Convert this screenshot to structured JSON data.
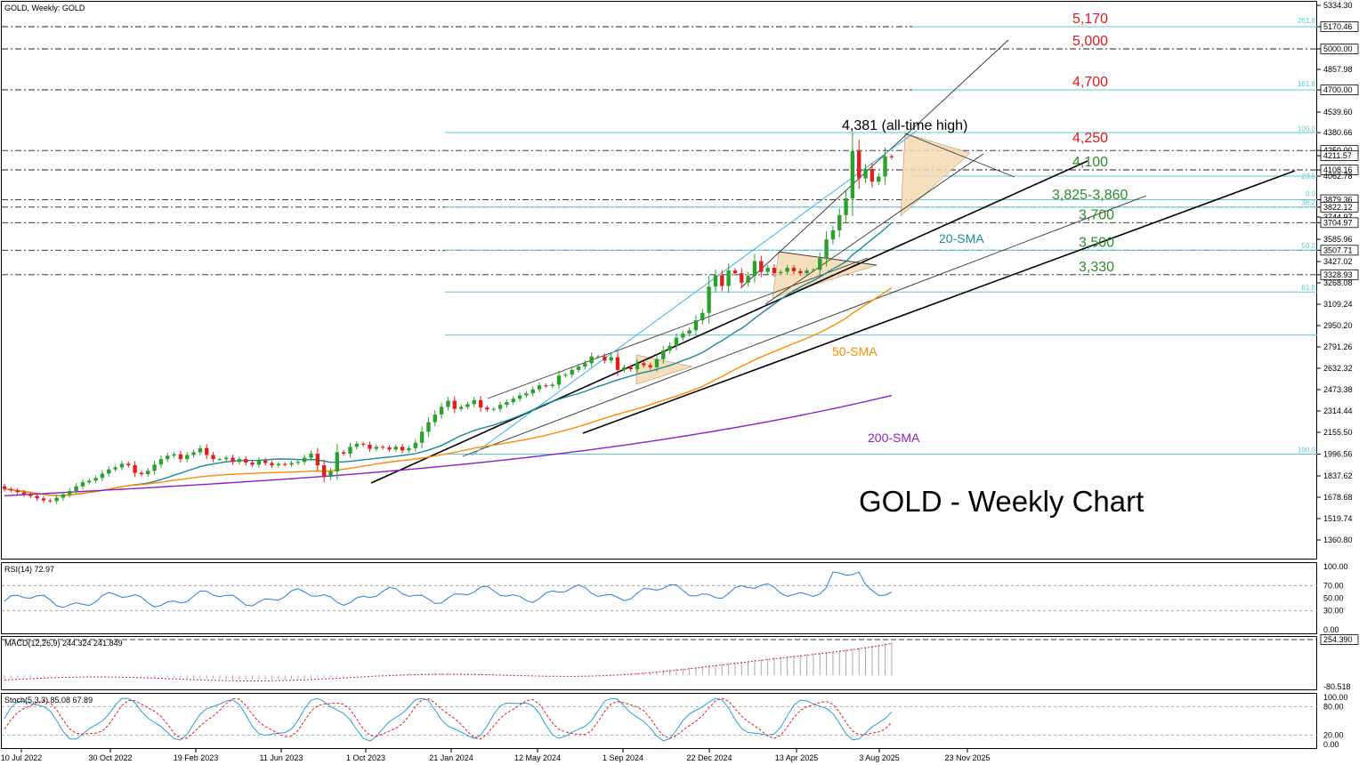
{
  "chart_data": {
    "type": "candlestick",
    "header": "GOLD, Weekly:  GOLD",
    "title": "GOLD - Weekly Chart",
    "x_ticks": [
      "10 Jul 2022",
      "30 Oct 2022",
      "19 Feb 2023",
      "11 Jun 2023",
      "1 Oct 2023",
      "21 Jan 2024",
      "12 May 2024",
      "1 Sep 2024",
      "22 Dec 2024",
      "13 Apr 2025",
      "3 Aug 2025",
      "23 Nov 2025"
    ],
    "y_ticks": [
      "5334.30",
      "5170.46",
      "5000.00",
      "4857.98",
      "4700.00",
      "4539.60",
      "4380.66",
      "4250.00",
      "4211.57",
      "4108.16",
      "4062.78",
      "3879.36",
      "3822.12",
      "3744.97",
      "3704.97",
      "3585.96",
      "3507.71",
      "3427.02",
      "3328.93",
      "3268.08",
      "3109.24",
      "2950.20",
      "2791.26",
      "2632.32",
      "2473.38",
      "2314.44",
      "2155.50",
      "1996.56",
      "1837.62",
      "1678.68",
      "1519.74",
      "1360.80"
    ],
    "ylim": [
      1200,
      5334.3
    ],
    "candle_closes": [
      1740,
      1730,
      1716,
      1700,
      1688,
      1670,
      1655,
      1650,
      1675,
      1700,
      1725,
      1760,
      1790,
      1802,
      1822,
      1855,
      1885,
      1900,
      1926,
      1915,
      1860,
      1850,
      1875,
      1920,
      1960,
      1985,
      1995,
      1960,
      1990,
      2010,
      2040,
      1990,
      1960,
      1960,
      1970,
      1940,
      1960,
      1935,
      1920,
      1950,
      1932,
      1915,
      1925,
      1920,
      1932,
      1940,
      1970,
      2000,
      1915,
      1832,
      1870,
      2010,
      2000,
      2050,
      2072,
      2065,
      2035,
      2050,
      2045,
      2030,
      2050,
      2024,
      2040,
      2079,
      2160,
      2231,
      2288,
      2345,
      2390,
      2330,
      2345,
      2365,
      2395,
      2340,
      2325,
      2330,
      2360,
      2380,
      2405,
      2430,
      2445,
      2475,
      2505,
      2500,
      2510,
      2578,
      2585,
      2620,
      2645,
      2670,
      2720,
      2720,
      2690,
      2715,
      2620,
      2640,
      2625,
      2670,
      2655,
      2640,
      2700,
      2765,
      2800,
      2860,
      2890,
      2915,
      2990,
      3045,
      3240,
      3325,
      3245,
      3360,
      3340,
      3270,
      3320,
      3430,
      3350,
      3380,
      3340,
      3350,
      3380,
      3355,
      3340,
      3360,
      3365,
      3450,
      3585,
      3650,
      3760,
      3890,
      4245,
      4045,
      4115,
      4020,
      4060,
      4208,
      4200
    ],
    "price_levels": [
      "5,170",
      "5,000",
      "4,700",
      "4,250",
      "4,100",
      "3,825-3,860",
      "3,700",
      "3,500",
      "3,330"
    ],
    "fibo_labels": [
      "261.8",
      "161.8",
      "100.0",
      "23.6",
      "0.0",
      "38.2",
      "50.0",
      "61.8",
      "100.0"
    ],
    "annotations": [
      "4,381 (all-time high)",
      "20-SMA",
      "50-SMA",
      "200-SMA"
    ],
    "rsi": {
      "label": "RSI(14) 72.97",
      "ticks": [
        "100.00",
        "70.00",
        "50.00",
        "30.00",
        "0.00"
      ]
    },
    "macd": {
      "label": "MACD(12,26,9) 244.324 241.849",
      "ticks": [
        "254.390",
        "-80.518"
      ]
    },
    "stoch": {
      "label": "Stoch(5,3,3) 85.08 67.89",
      "ticks": [
        "100.00",
        "80.00",
        "20.00",
        "0.00"
      ]
    },
    "colors": {
      "sma20": "#1a8a9b",
      "sma50": "#ff8c00",
      "sma200": "#8b1fc9",
      "bull": "#2ca02c",
      "bear": "#e02020",
      "fibo": "#5fc8d0",
      "target_red": "#e8161b",
      "target_green": "#2e8b2e",
      "triangle": "#f3d9b1"
    },
    "grid": false
  }
}
